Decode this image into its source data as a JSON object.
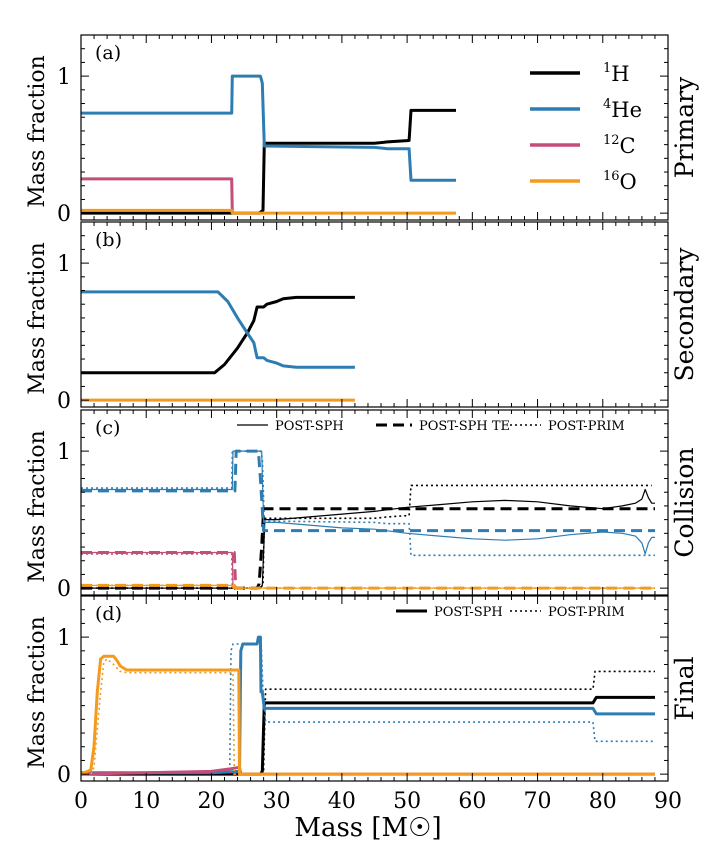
{
  "chart_data": {
    "type": "line",
    "xlabel": "Mass [M☉]",
    "ylabel": "Mass fraction",
    "xlim": [
      0,
      90
    ],
    "ylim": [
      -0.05,
      1.3
    ],
    "xticks": [
      0,
      10,
      20,
      30,
      40,
      50,
      60,
      70,
      80,
      90
    ],
    "yticks": [
      0,
      1
    ],
    "colors": {
      "H": "#000000",
      "He": "#2e7db2",
      "C": "#c44e7a",
      "O": "#f39a1f"
    },
    "panels": [
      {
        "label": "(a)",
        "side_label": "Primary",
        "legend": [
          {
            "key": "H",
            "text_sup": "1",
            "text": "H"
          },
          {
            "key": "He",
            "text_sup": "4",
            "text": "He"
          },
          {
            "key": "C",
            "text_sup": "12",
            "text": "C"
          },
          {
            "key": "O",
            "text_sup": "16",
            "text": "O"
          }
        ],
        "series": [
          {
            "key": "H",
            "style": "solid",
            "width": 3,
            "x": [
              0,
              27.3,
              27.9,
              28.1,
              45,
              47,
              50.3,
              50.6,
              57.5
            ],
            "y": [
              0,
              0,
              0.02,
              0.51,
              0.51,
              0.52,
              0.53,
              0.75,
              0.75
            ]
          },
          {
            "key": "He",
            "style": "solid",
            "width": 3,
            "x": [
              0,
              23.1,
              23.2,
              27.5,
              27.8,
              28.1,
              45,
              47,
              50.3,
              50.6,
              57.5
            ],
            "y": [
              0.73,
              0.73,
              1.0,
              1.0,
              0.95,
              0.49,
              0.48,
              0.47,
              0.47,
              0.24,
              0.24
            ]
          },
          {
            "key": "C",
            "style": "solid",
            "width": 3,
            "x": [
              0,
              23.1,
              23.2
            ],
            "y": [
              0.25,
              0.25,
              0.01
            ]
          },
          {
            "key": "O",
            "style": "solid",
            "width": 3,
            "x": [
              0,
              23.1,
              23.2,
              57.5
            ],
            "y": [
              0.02,
              0.02,
              0.0,
              0.0
            ]
          }
        ]
      },
      {
        "label": "(b)",
        "side_label": "Secondary",
        "series": [
          {
            "key": "H",
            "style": "solid",
            "width": 3,
            "x": [
              0,
              20.5,
              22,
              24,
              25.5,
              26.5,
              27,
              28,
              28.5,
              30,
              31,
              33,
              42
            ],
            "y": [
              0.2,
              0.2,
              0.26,
              0.38,
              0.49,
              0.58,
              0.68,
              0.68,
              0.7,
              0.72,
              0.74,
              0.75,
              0.75
            ]
          },
          {
            "key": "He",
            "style": "solid",
            "width": 3,
            "x": [
              0,
              21,
              22.5,
              24,
              25.5,
              26.5,
              27,
              28,
              28.5,
              30,
              31,
              33,
              42
            ],
            "y": [
              0.79,
              0.79,
              0.72,
              0.6,
              0.49,
              0.42,
              0.31,
              0.31,
              0.29,
              0.27,
              0.25,
              0.24,
              0.24
            ]
          },
          {
            "key": "O",
            "style": "solid",
            "width": 3,
            "x": [
              0,
              42
            ],
            "y": [
              0.0,
              0.0
            ]
          }
        ]
      },
      {
        "label": "(c)",
        "side_label": "Collision",
        "legend": [
          {
            "style": "solid",
            "text": "POST-SPH"
          },
          {
            "style": "dashed",
            "text": "POST-SPH TE"
          },
          {
            "style": "dotted",
            "text": "POST-PRIM"
          }
        ],
        "series": [
          {
            "key": "H",
            "style": "solid",
            "width": 1.2,
            "x": [
              0,
              27.4,
              27.8,
              28.2,
              30,
              35,
              40,
              45,
              50,
              55,
              60,
              65,
              70,
              75,
              80,
              83,
              85,
              86,
              86.5,
              87,
              87.5,
              88
            ],
            "y": [
              0,
              0,
              0.02,
              0.5,
              0.5,
              0.52,
              0.54,
              0.56,
              0.59,
              0.61,
              0.63,
              0.64,
              0.63,
              0.6,
              0.58,
              0.6,
              0.62,
              0.65,
              0.72,
              0.66,
              0.62,
              0.62
            ]
          },
          {
            "key": "H",
            "style": "dashed",
            "width": 3,
            "x": [
              0,
              27.0,
              27.3,
              27.7,
              28.0,
              88
            ],
            "y": [
              0,
              0,
              0.03,
              0.3,
              0.58,
              0.58
            ]
          },
          {
            "key": "H",
            "style": "dotted",
            "width": 1.6,
            "x": [
              0,
              27.3,
              27.9,
              28.1,
              45,
              47,
              50.3,
              50.6,
              87.5
            ],
            "y": [
              0,
              0,
              0.02,
              0.51,
              0.51,
              0.52,
              0.53,
              0.75,
              0.75
            ]
          },
          {
            "key": "He",
            "style": "solid",
            "width": 1.2,
            "x": [
              0,
              23.2,
              23.3,
              27.7,
              28.0,
              30,
              35,
              40,
              45,
              50,
              55,
              60,
              65,
              70,
              75,
              80,
              83,
              85,
              86,
              86.5,
              87,
              87.5,
              88
            ],
            "y": [
              0.72,
              0.72,
              1.0,
              1.0,
              0.48,
              0.48,
              0.46,
              0.44,
              0.43,
              0.4,
              0.38,
              0.36,
              0.35,
              0.36,
              0.39,
              0.41,
              0.4,
              0.38,
              0.33,
              0.25,
              0.33,
              0.37,
              0.37
            ]
          },
          {
            "key": "He",
            "style": "dashed",
            "width": 3,
            "x": [
              0,
              23.6,
              23.8,
              27.2,
              27.5,
              28.0,
              88
            ],
            "y": [
              0.71,
              0.71,
              1.0,
              1.0,
              0.8,
              0.42,
              0.42
            ]
          },
          {
            "key": "He",
            "style": "dotted",
            "width": 1.6,
            "x": [
              0,
              23.1,
              23.2,
              27.5,
              27.8,
              28.1,
              45,
              47,
              50.3,
              50.6,
              88
            ],
            "y": [
              0.73,
              0.73,
              1.0,
              1.0,
              0.95,
              0.49,
              0.48,
              0.47,
              0.47,
              0.24,
              0.24
            ]
          },
          {
            "key": "C",
            "style": "solid",
            "width": 1.2,
            "x": [
              0,
              23.2,
              23.3
            ],
            "y": [
              0.26,
              0.26,
              0.01
            ]
          },
          {
            "key": "C",
            "style": "dashed",
            "width": 3,
            "x": [
              0,
              23.5,
              23.7
            ],
            "y": [
              0.26,
              0.26,
              0.01
            ]
          },
          {
            "key": "C",
            "style": "dotted",
            "width": 1.6,
            "x": [
              0,
              23.1,
              23.2
            ],
            "y": [
              0.25,
              0.25,
              0.01
            ]
          },
          {
            "key": "O",
            "style": "solid",
            "width": 1.2,
            "x": [
              0,
              23.2,
              23.3,
              88
            ],
            "y": [
              0.02,
              0.02,
              0.0,
              0.0
            ]
          },
          {
            "key": "O",
            "style": "dashed",
            "width": 3,
            "x": [
              0,
              23.5,
              23.7,
              88
            ],
            "y": [
              0.02,
              0.02,
              0.0,
              0.0
            ]
          },
          {
            "key": "O",
            "style": "dotted",
            "width": 1.6,
            "x": [
              0,
              23.1,
              23.2,
              88
            ],
            "y": [
              0.02,
              0.02,
              0.0,
              0.0
            ]
          }
        ]
      },
      {
        "label": "(d)",
        "side_label": "Final",
        "legend": [
          {
            "style": "solid",
            "text": "POST-SPH"
          },
          {
            "style": "dotted",
            "text": "POST-PRIM"
          }
        ],
        "series": [
          {
            "key": "H",
            "style": "solid",
            "width": 3,
            "x": [
              0,
              27.5,
              27.8,
              28.1,
              78.5,
              79,
              88
            ],
            "y": [
              0,
              0,
              0.02,
              0.52,
              0.52,
              0.56,
              0.56
            ]
          },
          {
            "key": "H",
            "style": "dotted",
            "width": 1.6,
            "x": [
              0,
              27.7,
              28.0,
              28.3,
              78.5,
              78.8,
              88
            ],
            "y": [
              0,
              0,
              0.03,
              0.62,
              0.62,
              0.75,
              0.75
            ]
          },
          {
            "key": "He",
            "style": "solid",
            "width": 3,
            "x": [
              0,
              20,
              24.3,
              24.5,
              24.8,
              27.0,
              27.2,
              27.5,
              27.6,
              27.8,
              28.1,
              78.5,
              79,
              88
            ],
            "y": [
              0.01,
              0.01,
              0.02,
              0.9,
              0.95,
              0.95,
              1.0,
              1.0,
              0.6,
              0.6,
              0.48,
              0.48,
              0.44,
              0.44
            ]
          },
          {
            "key": "He",
            "style": "dotted",
            "width": 1.6,
            "x": [
              0,
              20,
              22.8,
              23.0,
              23.3,
              27.0,
              27.2,
              27.6,
              27.9,
              28.3,
              78.5,
              78.8,
              88
            ],
            "y": [
              0.01,
              0.01,
              0.02,
              0.9,
              0.95,
              0.95,
              0.99,
              0.99,
              0.6,
              0.38,
              0.38,
              0.24,
              0.24
            ]
          },
          {
            "key": "C",
            "style": "solid",
            "width": 3,
            "x": [
              0,
              10,
              20,
              23,
              24.3,
              24.5,
              88
            ],
            "y": [
              0.0,
              0.01,
              0.02,
              0.04,
              0.05,
              0.0,
              0.0
            ]
          },
          {
            "key": "C",
            "style": "dotted",
            "width": 1.6,
            "x": [
              0,
              10,
              20,
              22.8,
              23.0,
              88
            ],
            "y": [
              0.0,
              0.01,
              0.02,
              0.03,
              0.0,
              0.0
            ]
          },
          {
            "key": "O",
            "style": "solid",
            "width": 3,
            "x": [
              0,
              1.5,
              2.0,
              2.5,
              3.0,
              3.5,
              4.0,
              5.0,
              5.5,
              6.0,
              7.0,
              10,
              20,
              24.2,
              24.3,
              88
            ],
            "y": [
              0.0,
              0.03,
              0.2,
              0.6,
              0.84,
              0.86,
              0.86,
              0.86,
              0.83,
              0.79,
              0.76,
              0.76,
              0.76,
              0.76,
              0.0,
              0.0
            ]
          },
          {
            "key": "O",
            "style": "dotted",
            "width": 1.6,
            "x": [
              0,
              1.5,
              2.0,
              3.0,
              3.5,
              4.0,
              5.0,
              6.0,
              7.0,
              10,
              20,
              23.3,
              23.5,
              88
            ],
            "y": [
              0.0,
              0.0,
              0.05,
              0.6,
              0.82,
              0.84,
              0.8,
              0.75,
              0.74,
              0.74,
              0.74,
              0.74,
              0.0,
              0.0
            ]
          }
        ]
      }
    ]
  }
}
